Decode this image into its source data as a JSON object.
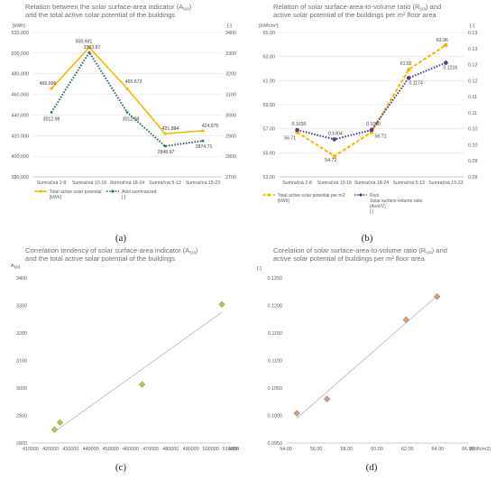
{
  "captions": [
    "(a)",
    "(b)",
    "(c)",
    "(d)"
  ],
  "chart_data": [
    {
      "type": "line",
      "title": [
        "Relation between the solar surface-area indicator (A",
        "sol",
        ") and the total active solar potential of the buildings"
      ],
      "categories": [
        "Sumračná 2-8",
        "Sumračná 10-16",
        "Sumračná 18-24",
        "Sumračná 5-13",
        "Sumračná 15-23"
      ],
      "y_left_unit": "[kWh]",
      "y_right_unit": "[-]",
      "ylim_left": [
        380000,
        520000
      ],
      "yticks_left": [
        "380,000",
        "400,000",
        "420,000",
        "440,000",
        "460,000",
        "480,000",
        "500,000",
        "520,000"
      ],
      "ylim_right": [
        2700,
        3400
      ],
      "yticks_right": [
        "2700",
        "2800",
        "2900",
        "3000",
        "3100",
        "3200",
        "3300",
        "3400"
      ],
      "series": [
        {
          "name": "Total active solar potential",
          "unit": "[kWh]",
          "axis": "left",
          "style": "solid",
          "color": "#f5b800",
          "values": [
            465696,
            505491,
            465673,
            421884,
            424675
          ],
          "labels": [
            "465,696",
            "505,491",
            "465,673",
            "421,884",
            "424,675"
          ]
        },
        {
          "name": "Asol summarized",
          "unit": "[-]",
          "axis": "right",
          "style": "dotted",
          "color": "#2e6b6b",
          "values": [
            3012.98,
            3303.87,
            3012.98,
            2848.97,
            2874.71
          ],
          "labels": [
            "3012.98",
            "3303.87",
            "3012.98",
            "2848.97",
            "2874.71"
          ]
        }
      ],
      "grid": true,
      "legend": "bottom"
    },
    {
      "type": "line",
      "title": [
        "Relation of solar surface-area-to-volume ratio (R",
        "sol",
        ") and",
        "active solar potential of the buildings per m² floor area"
      ],
      "categories": [
        "Sumračná 2-8",
        "Sumračná 10-16",
        "Sumračná 18-24",
        "Sumračná 5-13",
        "Sumračná 15-23"
      ],
      "y_left_unit": "[kWh/m²]",
      "y_right_unit": "[-]",
      "ylim_left": [
        53,
        65
      ],
      "yticks_left": [
        "53.00",
        "55.00",
        "57.00",
        "59.00",
        "61.00",
        "63.00",
        "65.00"
      ],
      "ylim_right": [
        0.09,
        0.13
      ],
      "yticks_right": [
        "0.09",
        "0.09",
        "0.10",
        "0.10",
        "0.11",
        "0.11",
        "0.12",
        "0.12",
        "0.13",
        "0.13"
      ],
      "series": [
        {
          "name": "Total active solar potential per m2",
          "unit": "[kWh]",
          "axis": "left",
          "style": "dashed",
          "color": "#f5b800",
          "values": [
            56.71,
            54.72,
            56.71,
            61.92,
            63.96
          ],
          "labels": [
            "56.71",
            "54.72",
            "56.71",
            "61.92",
            "63.96"
          ]
        },
        {
          "name": "Rsol",
          "name2": "Solar surface-volume ratio",
          "name3": "(Asol/V)",
          "unit": "[-]",
          "axis": "right",
          "style": "dotted",
          "color": "#5b3a86",
          "values": [
            0.103,
            0.1004,
            0.103,
            0.1174,
            0.1216
          ],
          "labels": [
            "0.1030",
            "0.1004",
            "0.1030",
            "0.1174",
            "0.1216"
          ]
        }
      ],
      "grid": true,
      "legend": "bottom"
    },
    {
      "type": "scatter",
      "title": [
        "Correlation tendency of solar surface-area indicator (A",
        "sol",
        ")",
        "and the total active solar potential of the buildings"
      ],
      "y_unit": [
        "A",
        "sol"
      ],
      "x_unit": "kWh",
      "xlim": [
        410000,
        510000
      ],
      "xticks": [
        "410000",
        "420000",
        "430000",
        "440000",
        "450000",
        "460000",
        "470000",
        "480000",
        "490000",
        "500000",
        "510000"
      ],
      "ylim": [
        2800,
        3400
      ],
      "yticks": [
        "2800",
        "2900",
        "3000",
        "3100",
        "3200",
        "3300",
        "3400"
      ],
      "points": [
        [
          421884,
          2848.97
        ],
        [
          424675,
          2874.71
        ],
        [
          465673,
          3012.98
        ],
        [
          505491,
          3303.87
        ]
      ],
      "trendline": true,
      "grid": false
    },
    {
      "type": "scatter",
      "title": [
        "Corelation of solar surface-area-to-volume ratio (R",
        "sol",
        ") and",
        "active solar potential of buildings per m² floor area"
      ],
      "y_unit": [
        "[-]"
      ],
      "x_unit": "[kWh/m2]",
      "xlim": [
        54,
        66
      ],
      "xticks": [
        "54.00",
        "56.00",
        "58.00",
        "60.00",
        "62.00",
        "64.00",
        "66.00"
      ],
      "ylim": [
        0.095,
        0.125
      ],
      "yticks": [
        "0.0950",
        "0.1000",
        "0.1050",
        "0.1100",
        "0.1150",
        "0.1200",
        "0.1250"
      ],
      "points": [
        [
          54.72,
          0.1004
        ],
        [
          56.71,
          0.103
        ],
        [
          61.92,
          0.1174
        ],
        [
          63.96,
          0.1216
        ]
      ],
      "trendline": true,
      "grid": false
    }
  ]
}
